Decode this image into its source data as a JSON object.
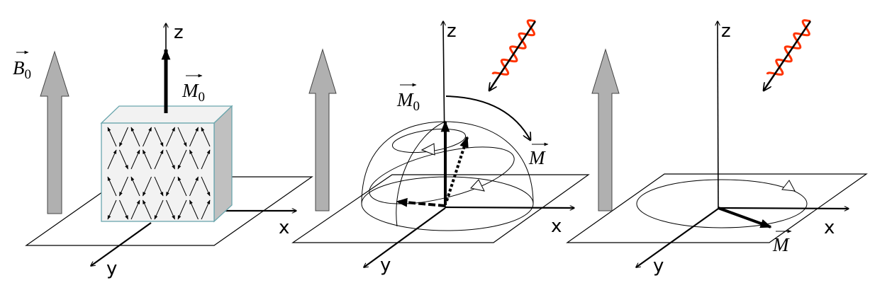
{
  "panels": [
    {
      "axes": {
        "z": "z",
        "x": "x",
        "y": "y"
      },
      "field_label": "B",
      "field_sub": "0",
      "vector_label": "M",
      "vector_sub": "0"
    },
    {
      "axes": {
        "z": "z",
        "x": "x",
        "y": "y"
      },
      "vector_label_initial": "M",
      "vector_sub_initial": "0",
      "vector_label": "M"
    },
    {
      "axes": {
        "z": "z",
        "x": "x",
        "y": "y"
      },
      "vector_label": "M"
    }
  ],
  "colors": {
    "field_arrow": "#b0b0b0",
    "rf_wave": "#ff3300",
    "cube_face": "#f2f2f2",
    "cube_side": "#c0c0c0",
    "cube_edge": "#6aa6ad"
  }
}
